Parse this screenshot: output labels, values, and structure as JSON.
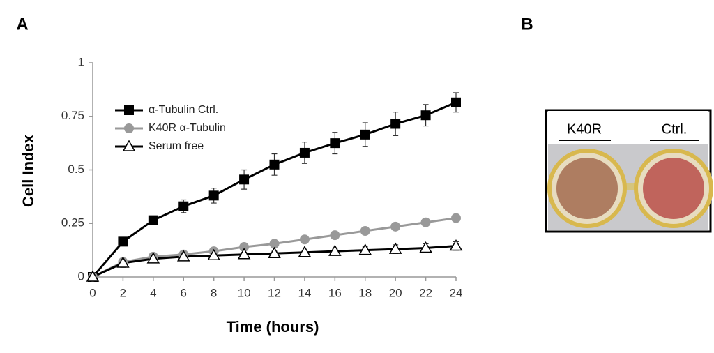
{
  "panel_labels": [
    "A",
    "B"
  ],
  "chart_data": {
    "type": "line",
    "xlabel": "Time (hours)",
    "ylabel": "Cell Index",
    "x": [
      0,
      2,
      4,
      6,
      8,
      10,
      12,
      14,
      16,
      18,
      20,
      22,
      24
    ],
    "xlim": [
      0,
      24
    ],
    "xticks": [
      0,
      2,
      4,
      6,
      8,
      10,
      12,
      14,
      16,
      18,
      20,
      22,
      24
    ],
    "ylim": [
      0,
      1
    ],
    "yticks": [
      0,
      0.25,
      0.5,
      0.75,
      1
    ],
    "legend": "upper left",
    "series": [
      {
        "name": "α-Tubulin Ctrl.",
        "color": "#000000",
        "marker": "square",
        "values": [
          0,
          0.165,
          0.265,
          0.33,
          0.38,
          0.455,
          0.525,
          0.58,
          0.625,
          0.665,
          0.715,
          0.755,
          0.815
        ],
        "errors": [
          0,
          0.01,
          0.01,
          0.03,
          0.035,
          0.045,
          0.05,
          0.05,
          0.05,
          0.055,
          0.055,
          0.05,
          0.045
        ]
      },
      {
        "name": "K40R α-Tubulin",
        "color": "#999999",
        "marker": "circle",
        "values": [
          0,
          0.07,
          0.095,
          0.105,
          0.12,
          0.14,
          0.155,
          0.175,
          0.195,
          0.215,
          0.235,
          0.255,
          0.275
        ]
      },
      {
        "name": "Serum free",
        "color": "#000000",
        "marker": "triangle",
        "values": [
          0,
          0.065,
          0.085,
          0.095,
          0.1,
          0.105,
          0.11,
          0.115,
          0.12,
          0.125,
          0.13,
          0.135,
          0.145
        ],
        "errors": [
          0,
          0.02,
          0.01,
          0.01,
          0.01,
          0.01,
          0.01,
          0.01,
          0.01,
          0.015,
          0.02,
          0.02,
          0.02
        ]
      }
    ]
  },
  "photo": {
    "labels": [
      "K40R",
      "Ctrl."
    ]
  }
}
